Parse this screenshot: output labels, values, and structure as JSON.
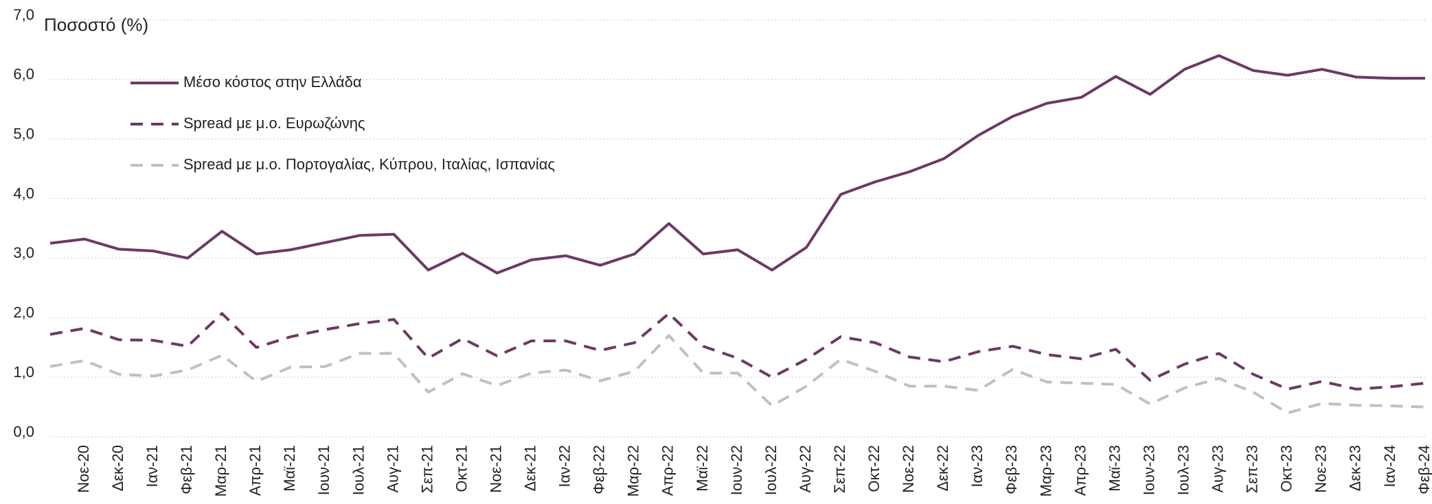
{
  "chart_data": {
    "type": "line",
    "y_label": "Ποσοστό (%)",
    "categories": [
      null,
      "Νοε-20",
      "Δεκ-20",
      "Ιαν-21",
      "Φεβ-21",
      "Μαρ-21",
      "Απρ-21",
      "Μαϊ-21",
      "Ιουν-21",
      "Ιουλ-21",
      "Αυγ-21",
      "Σεπ-21",
      "Οκτ-21",
      "Νοε-21",
      "Δεκ-21",
      "Ιαν-22",
      "Φεβ-22",
      "Μαρ-22",
      "Απρ-22",
      "Μαϊ-22",
      "Ιουν-22",
      "Ιουλ-22",
      "Αυγ-22",
      "Σεπ-22",
      "Οκτ-22",
      "Νοε-22",
      "Δεκ-22",
      "Ιαν-23",
      "Φεβ-23",
      "Μαρ-23",
      "Απρ-23",
      "Μαϊ-23",
      "Ιουν-23",
      "Ιουλ-23",
      "Αυγ-23",
      "Σεπ-23",
      "Οκτ-23",
      "Νοε-23",
      "Δεκ-23",
      "Ιαν-24",
      "Φεβ-24"
    ],
    "series": [
      {
        "name": "Μέσο κόστος στην Ελλάδα",
        "color": "#6b3a64",
        "line_style": "solid",
        "values": [
          3.25,
          3.32,
          3.15,
          3.12,
          3.0,
          3.45,
          3.07,
          3.14,
          3.26,
          3.38,
          3.4,
          2.8,
          3.08,
          2.75,
          2.97,
          3.04,
          2.88,
          3.07,
          3.58,
          3.07,
          3.14,
          2.8,
          3.18,
          4.07,
          4.28,
          4.45,
          4.67,
          5.06,
          5.38,
          5.6,
          5.7,
          6.05,
          5.75,
          6.17,
          6.4,
          6.15,
          6.07,
          6.17,
          6.04,
          6.02,
          6.02
        ]
      },
      {
        "name": "Spread με μ.ο. Ευρωζώνης",
        "color": "#6b3a64",
        "line_style": "dashed",
        "values": [
          1.72,
          1.82,
          1.63,
          1.62,
          1.52,
          2.07,
          1.5,
          1.68,
          1.8,
          1.9,
          1.97,
          1.32,
          1.65,
          1.36,
          1.61,
          1.61,
          1.45,
          1.58,
          2.07,
          1.52,
          1.32,
          1.0,
          1.3,
          1.68,
          1.58,
          1.34,
          1.26,
          1.43,
          1.52,
          1.38,
          1.31,
          1.47,
          0.95,
          1.22,
          1.4,
          1.05,
          0.8,
          0.93,
          0.8,
          0.84,
          0.9
        ]
      },
      {
        "name": "Spread με μ.ο. Πορτογαλίας, Κύπρου, Ιταλίας, Ισπανίας",
        "color": "#c0c0c0",
        "line_style": "dashed",
        "values": [
          1.18,
          1.28,
          1.05,
          1.02,
          1.12,
          1.37,
          0.93,
          1.17,
          1.18,
          1.4,
          1.4,
          0.75,
          1.06,
          0.86,
          1.07,
          1.12,
          0.94,
          1.1,
          1.7,
          1.07,
          1.07,
          0.52,
          0.85,
          1.3,
          1.1,
          0.85,
          0.85,
          0.78,
          1.13,
          0.92,
          0.9,
          0.88,
          0.55,
          0.82,
          0.98,
          0.75,
          0.4,
          0.56,
          0.53,
          0.52,
          0.5
        ]
      }
    ],
    "ylim": [
      0,
      7
    ],
    "yticks": [
      {
        "value": 0,
        "label": "0,0"
      },
      {
        "value": 1,
        "label": "1,0"
      },
      {
        "value": 2,
        "label": "2,0"
      },
      {
        "value": 3,
        "label": "3,0"
      },
      {
        "value": 4,
        "label": "4,0"
      },
      {
        "value": 5,
        "label": "5,0"
      },
      {
        "value": 6,
        "label": "6,0"
      },
      {
        "value": 7,
        "label": "7,0"
      }
    ],
    "grid": true,
    "legend": "top-left"
  }
}
